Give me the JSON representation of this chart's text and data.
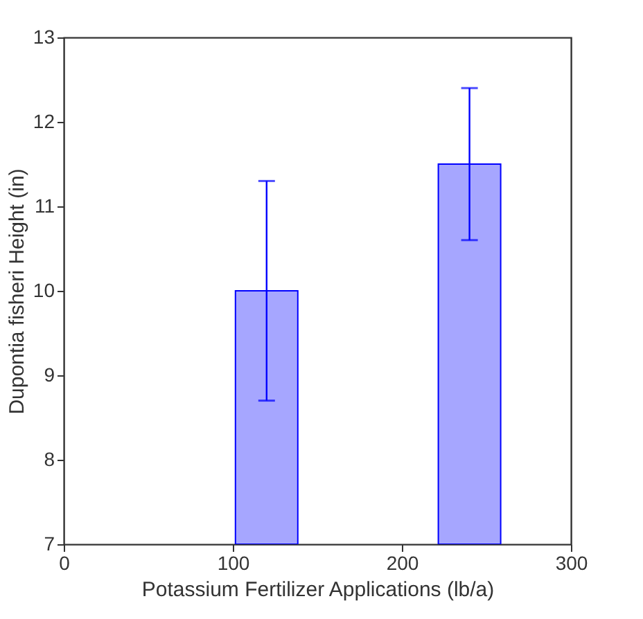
{
  "chart_data": {
    "type": "bar",
    "xlabel": "Potassium Fertilizer Applications (lb/a)",
    "ylabel": "Dupontia fisheri Height (in)",
    "x": [
      120,
      240
    ],
    "values": [
      10,
      11.5
    ],
    "color": "#0000ff",
    "errors": [
      [
        8.7,
        11.3
      ],
      [
        10.6,
        12.4
      ]
    ],
    "xlim": [
      0,
      300
    ],
    "xticks": [
      0,
      100,
      200,
      300
    ],
    "ylim": [
      7,
      13
    ],
    "yticks": [
      7,
      8,
      9,
      10,
      11,
      12,
      13
    ],
    "grid": false
  }
}
